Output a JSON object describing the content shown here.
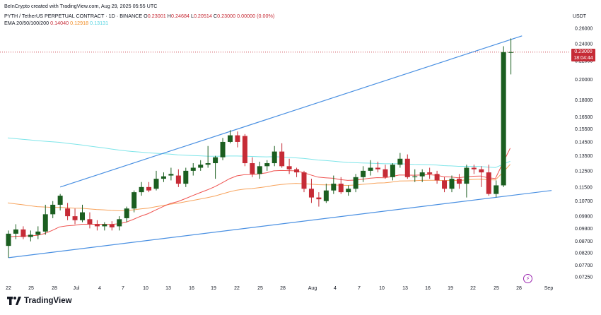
{
  "attribution": "BeInCrypto created with TradingView.com, Aug 29, 2025 05:55 UTC",
  "symbol_line": {
    "symbol": "PYTH / TetherUS PERPETUAL CONTRACT · 1D · BINANCE",
    "o_label": "O",
    "o_value": "0.23001",
    "h_label": "H",
    "h_value": "0.24684",
    "l_label": "L",
    "l_value": "0.20514",
    "c_label": "C",
    "c_value": "0.23000",
    "change": "0.00000 (0.00%)"
  },
  "ema_line": {
    "label": "EMA 20/50/100/200",
    "ema20": "0.14040",
    "ema50": "0.12918",
    "ema100": "0.13131"
  },
  "price_label": {
    "price": "0.23000",
    "countdown": "18:04:44"
  },
  "currency": "USDT",
  "footer_brand": "TradingView",
  "colors": {
    "up": "#1b5e20",
    "down": "#c62b36",
    "trendline": "#4a90e2",
    "ema20": "#ef5350",
    "ema50": "#f7a35c",
    "ema100": "#7ee5e9",
    "grid_text": "#131722"
  },
  "chart_data": {
    "type": "candlestick",
    "y_scale": "log",
    "y_ticks": [
      "0.26000",
      "0.24000",
      "0.22000",
      "0.20000",
      "0.18000",
      "0.16500",
      "0.15500",
      "0.14500",
      "0.13500",
      "0.12500",
      "0.11500",
      "0.10700",
      "0.09900",
      "0.09300",
      "0.08700",
      "0.08200",
      "0.07700",
      "0.07250"
    ],
    "x_ticks": [
      "22",
      "25",
      "28",
      "Jul",
      "4",
      "7",
      "10",
      "13",
      "16",
      "19",
      "22",
      "25",
      "28",
      "Aug",
      "4",
      "7",
      "10",
      "13",
      "16",
      "19",
      "22",
      "25",
      "28",
      "Sep"
    ],
    "candles": [
      {
        "o": 0.085,
        "h": 0.092,
        "l": 0.08,
        "c": 0.0905
      },
      {
        "o": 0.0905,
        "h": 0.095,
        "l": 0.088,
        "c": 0.0925
      },
      {
        "o": 0.0925,
        "h": 0.094,
        "l": 0.088,
        "c": 0.089
      },
      {
        "o": 0.089,
        "h": 0.092,
        "l": 0.087,
        "c": 0.09
      },
      {
        "o": 0.09,
        "h": 0.094,
        "l": 0.088,
        "c": 0.0915
      },
      {
        "o": 0.0915,
        "h": 0.105,
        "l": 0.09,
        "c": 0.1
      },
      {
        "o": 0.1,
        "h": 0.107,
        "l": 0.098,
        "c": 0.105
      },
      {
        "o": 0.105,
        "h": 0.111,
        "l": 0.102,
        "c": 0.11
      },
      {
        "o": 0.103,
        "h": 0.106,
        "l": 0.097,
        "c": 0.099
      },
      {
        "o": 0.099,
        "h": 0.103,
        "l": 0.095,
        "c": 0.097
      },
      {
        "o": 0.097,
        "h": 0.105,
        "l": 0.096,
        "c": 0.101
      },
      {
        "o": 0.0975,
        "h": 0.101,
        "l": 0.093,
        "c": 0.095
      },
      {
        "o": 0.095,
        "h": 0.097,
        "l": 0.092,
        "c": 0.094
      },
      {
        "o": 0.094,
        "h": 0.096,
        "l": 0.092,
        "c": 0.095
      },
      {
        "o": 0.095,
        "h": 0.0965,
        "l": 0.092,
        "c": 0.0935
      },
      {
        "o": 0.094,
        "h": 0.099,
        "l": 0.092,
        "c": 0.0975
      },
      {
        "o": 0.098,
        "h": 0.104,
        "l": 0.096,
        "c": 0.103
      },
      {
        "o": 0.103,
        "h": 0.113,
        "l": 0.101,
        "c": 0.112
      },
      {
        "o": 0.112,
        "h": 0.118,
        "l": 0.11,
        "c": 0.115
      },
      {
        "o": 0.115,
        "h": 0.118,
        "l": 0.112,
        "c": 0.113
      },
      {
        "o": 0.114,
        "h": 0.125,
        "l": 0.113,
        "c": 0.12
      },
      {
        "o": 0.12,
        "h": 0.124,
        "l": 0.118,
        "c": 0.1215
      },
      {
        "o": 0.122,
        "h": 0.127,
        "l": 0.119,
        "c": 0.123
      },
      {
        "o": 0.122,
        "h": 0.126,
        "l": 0.115,
        "c": 0.117
      },
      {
        "o": 0.117,
        "h": 0.127,
        "l": 0.115,
        "c": 0.125
      },
      {
        "o": 0.125,
        "h": 0.13,
        "l": 0.122,
        "c": 0.127
      },
      {
        "o": 0.127,
        "h": 0.132,
        "l": 0.125,
        "c": 0.129
      },
      {
        "o": 0.129,
        "h": 0.142,
        "l": 0.127,
        "c": 0.13
      },
      {
        "o": 0.13,
        "h": 0.135,
        "l": 0.12,
        "c": 0.134
      },
      {
        "o": 0.134,
        "h": 0.148,
        "l": 0.132,
        "c": 0.145
      },
      {
        "o": 0.145,
        "h": 0.154,
        "l": 0.144,
        "c": 0.15
      },
      {
        "o": 0.15,
        "h": 0.153,
        "l": 0.141,
        "c": 0.145
      },
      {
        "o": 0.1495,
        "h": 0.151,
        "l": 0.128,
        "c": 0.13
      },
      {
        "o": 0.13,
        "h": 0.134,
        "l": 0.121,
        "c": 0.123
      },
      {
        "o": 0.123,
        "h": 0.131,
        "l": 0.12,
        "c": 0.128
      },
      {
        "o": 0.128,
        "h": 0.132,
        "l": 0.125,
        "c": 0.13
      },
      {
        "o": 0.13,
        "h": 0.142,
        "l": 0.128,
        "c": 0.138
      },
      {
        "o": 0.138,
        "h": 0.144,
        "l": 0.127,
        "c": 0.128
      },
      {
        "o": 0.128,
        "h": 0.133,
        "l": 0.123,
        "c": 0.126
      },
      {
        "o": 0.126,
        "h": 0.127,
        "l": 0.121,
        "c": 0.124
      },
      {
        "o": 0.124,
        "h": 0.125,
        "l": 0.112,
        "c": 0.114
      },
      {
        "o": 0.114,
        "h": 0.12,
        "l": 0.106,
        "c": 0.109
      },
      {
        "o": 0.109,
        "h": 0.112,
        "l": 0.104,
        "c": 0.108
      },
      {
        "o": 0.107,
        "h": 0.117,
        "l": 0.106,
        "c": 0.113
      },
      {
        "o": 0.113,
        "h": 0.122,
        "l": 0.111,
        "c": 0.117
      },
      {
        "o": 0.117,
        "h": 0.121,
        "l": 0.111,
        "c": 0.112
      },
      {
        "o": 0.112,
        "h": 0.116,
        "l": 0.11,
        "c": 0.114
      },
      {
        "o": 0.114,
        "h": 0.123,
        "l": 0.112,
        "c": 0.121
      },
      {
        "o": 0.121,
        "h": 0.128,
        "l": 0.118,
        "c": 0.125
      },
      {
        "o": 0.125,
        "h": 0.132,
        "l": 0.122,
        "c": 0.127
      },
      {
        "o": 0.127,
        "h": 0.131,
        "l": 0.124,
        "c": 0.126
      },
      {
        "o": 0.126,
        "h": 0.129,
        "l": 0.12,
        "c": 0.121
      },
      {
        "o": 0.121,
        "h": 0.13,
        "l": 0.119,
        "c": 0.129
      },
      {
        "o": 0.129,
        "h": 0.137,
        "l": 0.127,
        "c": 0.133
      },
      {
        "o": 0.133,
        "h": 0.136,
        "l": 0.12,
        "c": 0.121
      },
      {
        "o": 0.121,
        "h": 0.126,
        "l": 0.118,
        "c": 0.1215
      },
      {
        "o": 0.1215,
        "h": 0.126,
        "l": 0.118,
        "c": 0.124
      },
      {
        "o": 0.124,
        "h": 0.127,
        "l": 0.12,
        "c": 0.123
      },
      {
        "o": 0.123,
        "h": 0.125,
        "l": 0.117,
        "c": 0.119
      },
      {
        "o": 0.119,
        "h": 0.121,
        "l": 0.112,
        "c": 0.114
      },
      {
        "o": 0.114,
        "h": 0.122,
        "l": 0.112,
        "c": 0.12
      },
      {
        "o": 0.12,
        "h": 0.123,
        "l": 0.114,
        "c": 0.117
      },
      {
        "o": 0.117,
        "h": 0.129,
        "l": 0.109,
        "c": 0.127
      },
      {
        "o": 0.127,
        "h": 0.129,
        "l": 0.123,
        "c": 0.126
      },
      {
        "o": 0.126,
        "h": 0.128,
        "l": 0.115,
        "c": 0.124
      },
      {
        "o": 0.124,
        "h": 0.129,
        "l": 0.11,
        "c": 0.111
      },
      {
        "o": 0.111,
        "h": 0.119,
        "l": 0.109,
        "c": 0.116
      },
      {
        "o": 0.116,
        "h": 0.237,
        "l": 0.115,
        "c": 0.23
      },
      {
        "o": 0.23,
        "h": 0.2468,
        "l": 0.2051,
        "c": 0.23
      }
    ],
    "ema20": [
      0.089,
      0.0893,
      0.0894,
      0.0895,
      0.0897,
      0.0906,
      0.092,
      0.0937,
      0.0942,
      0.0945,
      0.095,
      0.095,
      0.095,
      0.095,
      0.0949,
      0.0952,
      0.096,
      0.0974,
      0.099,
      0.1003,
      0.1022,
      0.104,
      0.1057,
      0.1067,
      0.1083,
      0.11,
      0.1117,
      0.1133,
      0.1152,
      0.1175,
      0.12,
      0.1218,
      0.1225,
      0.1226,
      0.1231,
      0.1237,
      0.125,
      0.1252,
      0.1251,
      0.125,
      0.1239,
      0.1224,
      0.121,
      0.1206,
      0.1203,
      0.1195,
      0.119,
      0.1192,
      0.1197,
      0.1203,
      0.1207,
      0.1206,
      0.1214,
      0.1224,
      0.1223,
      0.1222,
      0.1224,
      0.1225,
      0.1222,
      0.1213,
      0.1211,
      0.1206,
      0.1212,
      0.1216,
      0.1217,
      0.1206,
      0.1202,
      0.13,
      0.1404
    ],
    "ema50": [
      0.106,
      0.1055,
      0.105,
      0.1045,
      0.104,
      0.1038,
      0.1036,
      0.1036,
      0.1034,
      0.1032,
      0.1031,
      0.1028,
      0.1025,
      0.1023,
      0.102,
      0.1018,
      0.1019,
      0.1023,
      0.1028,
      0.1032,
      0.1039,
      0.1046,
      0.1053,
      0.1058,
      0.1066,
      0.1073,
      0.1081,
      0.1089,
      0.1098,
      0.111,
      0.1122,
      0.1132,
      0.1138,
      0.1141,
      0.1146,
      0.1152,
      0.116,
      0.1165,
      0.1169,
      0.1172,
      0.117,
      0.1167,
      0.1164,
      0.1163,
      0.1163,
      0.1161,
      0.116,
      0.1162,
      0.1166,
      0.117,
      0.1174,
      0.1175,
      0.118,
      0.1186,
      0.1187,
      0.1188,
      0.119,
      0.1191,
      0.1191,
      0.1189,
      0.119,
      0.1189,
      0.1193,
      0.1196,
      0.1198,
      0.1194,
      0.1193,
      0.124,
      0.1292
    ],
    "ema100": [
      0.148,
      0.1475,
      0.147,
      0.1465,
      0.146,
      0.1455,
      0.1451,
      0.1447,
      0.144,
      0.1434,
      0.1428,
      0.142,
      0.1413,
      0.1406,
      0.1398,
      0.1391,
      0.1385,
      0.138,
      0.1376,
      0.1371,
      0.1368,
      0.1365,
      0.1362,
      0.1357,
      0.1354,
      0.1352,
      0.135,
      0.1348,
      0.1347,
      0.1348,
      0.1349,
      0.1349,
      0.1348,
      0.1346,
      0.1344,
      0.1343,
      0.1344,
      0.1342,
      0.1339,
      0.1336,
      0.1332,
      0.1327,
      0.1321,
      0.1318,
      0.1314,
      0.1309,
      0.1305,
      0.1303,
      0.1301,
      0.13,
      0.1298,
      0.1296,
      0.1296,
      0.1296,
      0.1294,
      0.1292,
      0.1291,
      0.129,
      0.1288,
      0.1284,
      0.1282,
      0.1279,
      0.1279,
      0.1279,
      0.1278,
      0.1274,
      0.1271,
      0.1292,
      0.1313
    ],
    "trendlines": [
      {
        "name": "upper",
        "from": {
          "i": 7,
          "price": 0.115
        },
        "to": {
          "i": 69.5,
          "price": 0.25
        }
      },
      {
        "name": "lower",
        "from": {
          "i": 0,
          "price": 0.08
        },
        "to": {
          "i": 73.5,
          "price": 0.113
        }
      }
    ],
    "last_price_line": 0.23
  }
}
